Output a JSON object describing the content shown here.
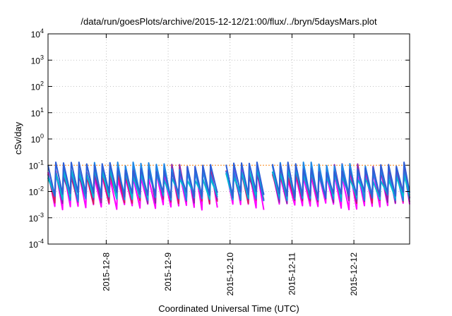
{
  "chart_data": {
    "type": "line",
    "title": "/data/run/goesPlots/archive/2015-12-12/21:00/flux/../bryn/5daysMars.plot",
    "xlabel": "Coordinated Universal Time (UTC)",
    "ylabel": "cSv/day",
    "yscale": "log",
    "ylim": [
      0.0001,
      10000
    ],
    "xlim_days": [
      7.06,
      12.9
    ],
    "grid": true,
    "legend": "none",
    "y_ticks": [
      {
        "value": 0.0001,
        "base": "10",
        "exp": "-4"
      },
      {
        "value": 0.001,
        "base": "10",
        "exp": "-3"
      },
      {
        "value": 0.01,
        "base": "10",
        "exp": "-2"
      },
      {
        "value": 0.1,
        "base": "10",
        "exp": "-1"
      },
      {
        "value": 1,
        "base": "10",
        "exp": "0"
      },
      {
        "value": 10,
        "base": "10",
        "exp": "1"
      },
      {
        "value": 100,
        "base": "10",
        "exp": "2"
      },
      {
        "value": 1000,
        "base": "10",
        "exp": "3"
      },
      {
        "value": 10000,
        "base": "10",
        "exp": "4"
      }
    ],
    "x_ticks": [
      {
        "day": 8,
        "label": "2015-12-8"
      },
      {
        "day": 9,
        "label": "2015-12-9"
      },
      {
        "day": 10,
        "label": "2015-12-10"
      },
      {
        "day": 11,
        "label": "2015-12-11"
      },
      {
        "day": 12,
        "label": "2015-12-12"
      }
    ],
    "reference_line": {
      "value": 0.1,
      "color": "#ff8c1a"
    },
    "cycles_per_day": 8,
    "gaps": [
      [
        9.73,
        9.93
      ],
      [
        10.53,
        10.6
      ]
    ],
    "envelope": {
      "peak_start": 0.095,
      "trough_min": 0.0012,
      "trough_typical": 0.0035
    },
    "series": [
      {
        "color": "#ff00ff",
        "peak": 0.055,
        "trough": 0.0028
      },
      {
        "color": "#d81b60",
        "peak": 0.065,
        "trough": 0.0045
      },
      {
        "color": "#8e24aa",
        "peak": 0.07,
        "trough": 0.005
      },
      {
        "color": "#1e88e5",
        "peak": 0.085,
        "trough": 0.006
      },
      {
        "color": "#00bcd4",
        "peak": 0.045,
        "trough": 0.007
      },
      {
        "color": "#2e5fd6",
        "peak": 0.1,
        "trough": 0.008
      }
    ]
  }
}
